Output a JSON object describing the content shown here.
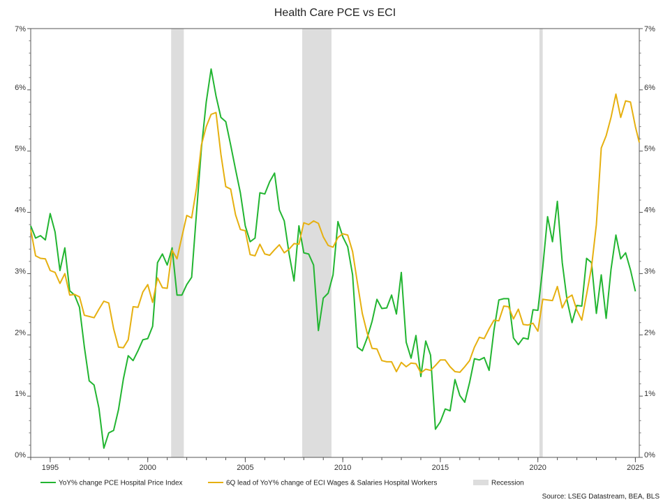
{
  "chart_data": {
    "type": "line",
    "title": "Health Care PCE vs ECI",
    "source": "Source: LSEG Datastream, BEA, BLS",
    "x_ticks": [
      "1995",
      "2000",
      "2005",
      "2010",
      "2015",
      "2020",
      "2025"
    ],
    "y_ticks": [
      "0%",
      "1%",
      "2%",
      "3%",
      "4%",
      "5%",
      "6%",
      "7%"
    ],
    "xlim": [
      1994.0,
      2025.2
    ],
    "ylim": [
      0,
      7
    ],
    "y_unit": "%",
    "grid": false,
    "legend_position": "bottom",
    "recessions": [
      {
        "start": 2001.2,
        "end": 2001.85
      },
      {
        "start": 2007.92,
        "end": 2009.42
      },
      {
        "start": 2020.08,
        "end": 2020.25
      }
    ],
    "recession_label": "Recession",
    "recession_color": "#dddddd",
    "series": [
      {
        "name": "YoY% change PCE Hospital Price Index",
        "color": "#22b531",
        "points": [
          [
            1994.0,
            3.78
          ],
          [
            1994.25,
            3.58
          ],
          [
            1994.5,
            3.62
          ],
          [
            1994.75,
            3.55
          ],
          [
            1995.0,
            3.98
          ],
          [
            1995.25,
            3.68
          ],
          [
            1995.5,
            3.05
          ],
          [
            1995.75,
            3.42
          ],
          [
            1996.0,
            2.72
          ],
          [
            1996.25,
            2.65
          ],
          [
            1996.5,
            2.45
          ],
          [
            1996.75,
            1.8
          ],
          [
            1997.0,
            1.25
          ],
          [
            1997.25,
            1.18
          ],
          [
            1997.5,
            0.8
          ],
          [
            1997.75,
            0.15
          ],
          [
            1998.0,
            0.4
          ],
          [
            1998.25,
            0.44
          ],
          [
            1998.5,
            0.78
          ],
          [
            1998.75,
            1.28
          ],
          [
            1999.0,
            1.66
          ],
          [
            1999.25,
            1.58
          ],
          [
            1999.5,
            1.74
          ],
          [
            1999.75,
            1.92
          ],
          [
            2000.0,
            1.94
          ],
          [
            2000.25,
            2.14
          ],
          [
            2000.5,
            3.18
          ],
          [
            2000.75,
            3.32
          ],
          [
            2001.0,
            3.14
          ],
          [
            2001.25,
            3.42
          ],
          [
            2001.5,
            2.65
          ],
          [
            2001.75,
            2.65
          ],
          [
            2002.0,
            2.82
          ],
          [
            2002.25,
            2.94
          ],
          [
            2002.5,
            4.0
          ],
          [
            2002.75,
            5.05
          ],
          [
            2003.0,
            5.8
          ],
          [
            2003.25,
            6.34
          ],
          [
            2003.5,
            5.9
          ],
          [
            2003.75,
            5.55
          ],
          [
            2004.0,
            5.48
          ],
          [
            2004.25,
            5.1
          ],
          [
            2004.5,
            4.7
          ],
          [
            2004.75,
            4.32
          ],
          [
            2005.0,
            3.78
          ],
          [
            2005.25,
            3.52
          ],
          [
            2005.5,
            3.58
          ],
          [
            2005.75,
            4.32
          ],
          [
            2006.0,
            4.3
          ],
          [
            2006.25,
            4.5
          ],
          [
            2006.5,
            4.64
          ],
          [
            2006.75,
            4.04
          ],
          [
            2007.0,
            3.86
          ],
          [
            2007.25,
            3.32
          ],
          [
            2007.5,
            2.88
          ],
          [
            2007.75,
            3.78
          ],
          [
            2008.0,
            3.34
          ],
          [
            2008.25,
            3.32
          ],
          [
            2008.5,
            3.14
          ],
          [
            2008.75,
            2.07
          ],
          [
            2009.0,
            2.6
          ],
          [
            2009.25,
            2.68
          ],
          [
            2009.5,
            2.98
          ],
          [
            2009.75,
            3.85
          ],
          [
            2010.0,
            3.6
          ],
          [
            2010.25,
            3.44
          ],
          [
            2010.5,
            2.98
          ],
          [
            2010.75,
            1.8
          ],
          [
            2011.0,
            1.74
          ],
          [
            2011.25,
            1.95
          ],
          [
            2011.5,
            2.22
          ],
          [
            2011.75,
            2.58
          ],
          [
            2012.0,
            2.43
          ],
          [
            2012.25,
            2.44
          ],
          [
            2012.5,
            2.65
          ],
          [
            2012.75,
            2.34
          ],
          [
            2013.0,
            3.02
          ],
          [
            2013.25,
            1.88
          ],
          [
            2013.5,
            1.62
          ],
          [
            2013.75,
            1.99
          ],
          [
            2014.0,
            1.32
          ],
          [
            2014.25,
            1.9
          ],
          [
            2014.5,
            1.67
          ],
          [
            2014.75,
            0.46
          ],
          [
            2015.0,
            0.58
          ],
          [
            2015.25,
            0.79
          ],
          [
            2015.5,
            0.76
          ],
          [
            2015.75,
            1.27
          ],
          [
            2016.0,
            1.01
          ],
          [
            2016.25,
            0.9
          ],
          [
            2016.5,
            1.22
          ],
          [
            2016.75,
            1.61
          ],
          [
            2017.0,
            1.59
          ],
          [
            2017.25,
            1.63
          ],
          [
            2017.5,
            1.42
          ],
          [
            2017.75,
            2.08
          ],
          [
            2018.0,
            2.57
          ],
          [
            2018.25,
            2.59
          ],
          [
            2018.5,
            2.59
          ],
          [
            2018.75,
            1.95
          ],
          [
            2019.0,
            1.84
          ],
          [
            2019.25,
            1.95
          ],
          [
            2019.5,
            1.93
          ],
          [
            2019.75,
            2.41
          ],
          [
            2020.0,
            2.4
          ],
          [
            2020.25,
            3.1
          ],
          [
            2020.5,
            3.93
          ],
          [
            2020.75,
            3.52
          ],
          [
            2021.0,
            4.18
          ],
          [
            2021.25,
            3.18
          ],
          [
            2021.5,
            2.56
          ],
          [
            2021.75,
            2.2
          ],
          [
            2022.0,
            2.48
          ],
          [
            2022.25,
            2.47
          ],
          [
            2022.5,
            3.25
          ],
          [
            2022.75,
            3.18
          ],
          [
            2023.0,
            2.35
          ],
          [
            2023.25,
            2.98
          ],
          [
            2023.5,
            2.27
          ],
          [
            2023.75,
            3.07
          ],
          [
            2024.0,
            3.63
          ],
          [
            2024.25,
            3.24
          ],
          [
            2024.5,
            3.34
          ],
          [
            2024.75,
            3.06
          ],
          [
            2025.0,
            2.71
          ]
        ]
      },
      {
        "name": "6Q lead of YoY% change of ECI Wages & Salaries Hospital Workers",
        "color": "#e6b010",
        "points": [
          [
            1994.0,
            3.72
          ],
          [
            1994.25,
            3.29
          ],
          [
            1994.5,
            3.25
          ],
          [
            1994.75,
            3.24
          ],
          [
            1995.0,
            3.05
          ],
          [
            1995.25,
            3.02
          ],
          [
            1995.5,
            2.84
          ],
          [
            1995.75,
            3.0
          ],
          [
            1996.0,
            2.65
          ],
          [
            1996.25,
            2.66
          ],
          [
            1996.5,
            2.62
          ],
          [
            1996.75,
            2.32
          ],
          [
            1997.0,
            2.3
          ],
          [
            1997.25,
            2.28
          ],
          [
            1997.5,
            2.42
          ],
          [
            1997.75,
            2.55
          ],
          [
            1998.0,
            2.52
          ],
          [
            1998.25,
            2.1
          ],
          [
            1998.5,
            1.8
          ],
          [
            1998.75,
            1.79
          ],
          [
            1999.0,
            1.92
          ],
          [
            1999.25,
            2.46
          ],
          [
            1999.5,
            2.45
          ],
          [
            1999.75,
            2.7
          ],
          [
            2000.0,
            2.82
          ],
          [
            2000.25,
            2.53
          ],
          [
            2000.5,
            2.93
          ],
          [
            2000.75,
            2.77
          ],
          [
            2001.0,
            2.76
          ],
          [
            2001.25,
            3.38
          ],
          [
            2001.5,
            3.24
          ],
          [
            2001.75,
            3.6
          ],
          [
            2002.0,
            3.95
          ],
          [
            2002.25,
            3.91
          ],
          [
            2002.5,
            4.4
          ],
          [
            2002.75,
            5.1
          ],
          [
            2003.0,
            5.4
          ],
          [
            2003.25,
            5.6
          ],
          [
            2003.5,
            5.63
          ],
          [
            2003.75,
            4.95
          ],
          [
            2004.0,
            4.42
          ],
          [
            2004.25,
            4.38
          ],
          [
            2004.5,
            3.96
          ],
          [
            2004.75,
            3.72
          ],
          [
            2005.0,
            3.7
          ],
          [
            2005.25,
            3.31
          ],
          [
            2005.5,
            3.29
          ],
          [
            2005.75,
            3.48
          ],
          [
            2006.0,
            3.32
          ],
          [
            2006.25,
            3.3
          ],
          [
            2006.5,
            3.39
          ],
          [
            2006.75,
            3.47
          ],
          [
            2007.0,
            3.34
          ],
          [
            2007.25,
            3.4
          ],
          [
            2007.5,
            3.49
          ],
          [
            2007.75,
            3.48
          ],
          [
            2008.0,
            3.83
          ],
          [
            2008.25,
            3.8
          ],
          [
            2008.5,
            3.86
          ],
          [
            2008.75,
            3.82
          ],
          [
            2009.0,
            3.6
          ],
          [
            2009.25,
            3.46
          ],
          [
            2009.5,
            3.43
          ],
          [
            2009.75,
            3.59
          ],
          [
            2010.0,
            3.65
          ],
          [
            2010.25,
            3.63
          ],
          [
            2010.5,
            3.36
          ],
          [
            2010.75,
            2.85
          ],
          [
            2011.0,
            2.35
          ],
          [
            2011.25,
            2.03
          ],
          [
            2011.5,
            1.78
          ],
          [
            2011.75,
            1.77
          ],
          [
            2012.0,
            1.58
          ],
          [
            2012.25,
            1.56
          ],
          [
            2012.5,
            1.56
          ],
          [
            2012.75,
            1.4
          ],
          [
            2013.0,
            1.55
          ],
          [
            2013.25,
            1.48
          ],
          [
            2013.5,
            1.54
          ],
          [
            2013.75,
            1.53
          ],
          [
            2014.0,
            1.38
          ],
          [
            2014.25,
            1.44
          ],
          [
            2014.5,
            1.42
          ],
          [
            2014.75,
            1.5
          ],
          [
            2015.0,
            1.59
          ],
          [
            2015.25,
            1.59
          ],
          [
            2015.5,
            1.48
          ],
          [
            2015.75,
            1.4
          ],
          [
            2016.0,
            1.39
          ],
          [
            2016.25,
            1.48
          ],
          [
            2016.5,
            1.58
          ],
          [
            2016.75,
            1.8
          ],
          [
            2017.0,
            1.96
          ],
          [
            2017.25,
            1.94
          ],
          [
            2017.5,
            2.1
          ],
          [
            2017.75,
            2.24
          ],
          [
            2018.0,
            2.23
          ],
          [
            2018.25,
            2.47
          ],
          [
            2018.5,
            2.46
          ],
          [
            2018.75,
            2.26
          ],
          [
            2019.0,
            2.42
          ],
          [
            2019.25,
            2.17
          ],
          [
            2019.5,
            2.16
          ],
          [
            2019.75,
            2.19
          ],
          [
            2020.0,
            2.06
          ],
          [
            2020.25,
            2.58
          ],
          [
            2020.5,
            2.57
          ],
          [
            2020.75,
            2.56
          ],
          [
            2021.0,
            2.79
          ],
          [
            2021.25,
            2.44
          ],
          [
            2021.5,
            2.6
          ],
          [
            2021.75,
            2.65
          ],
          [
            2022.0,
            2.4
          ],
          [
            2022.25,
            2.24
          ],
          [
            2022.5,
            2.66
          ],
          [
            2022.75,
            3.1
          ],
          [
            2023.0,
            3.8
          ],
          [
            2023.25,
            5.05
          ],
          [
            2023.5,
            5.25
          ],
          [
            2023.75,
            5.55
          ],
          [
            2024.0,
            5.93
          ],
          [
            2024.25,
            5.55
          ],
          [
            2024.5,
            5.82
          ],
          [
            2024.75,
            5.8
          ],
          [
            2025.0,
            5.4
          ],
          [
            2025.2,
            5.14
          ]
        ]
      }
    ]
  }
}
